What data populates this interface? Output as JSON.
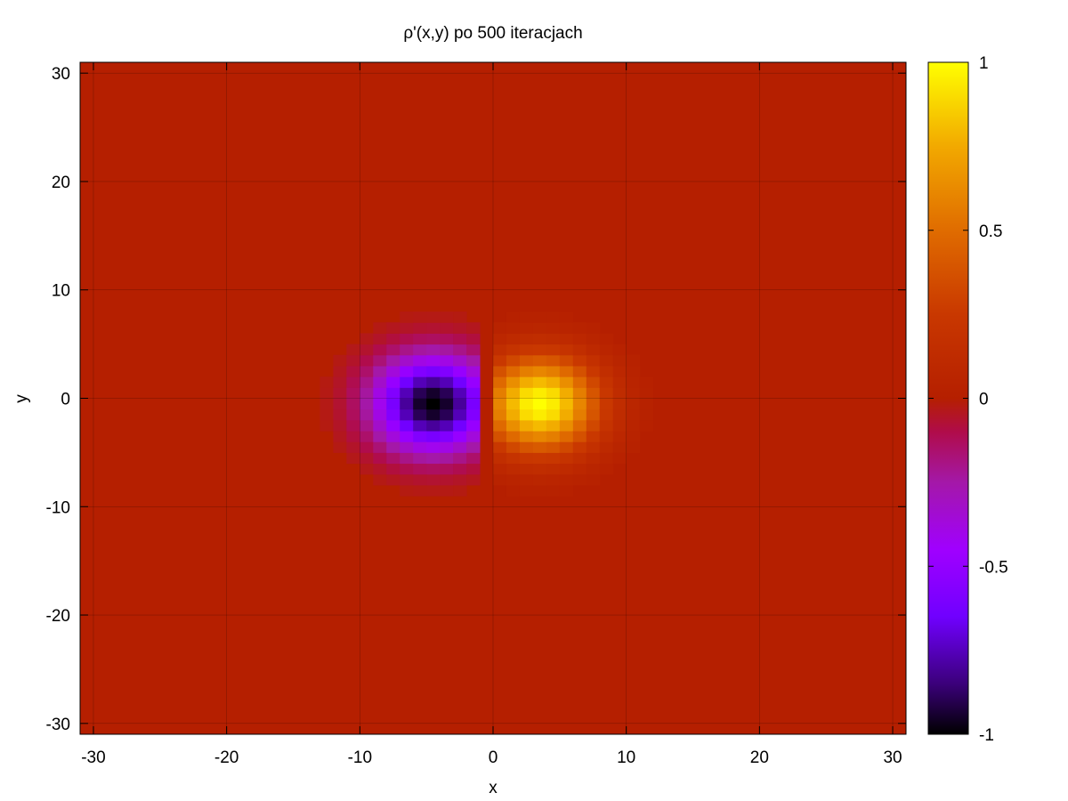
{
  "chart_data": {
    "type": "heatmap",
    "title": "ρ'(x,y) po 500 iteracjach",
    "xlabel": "x",
    "ylabel": "y",
    "xlim": [
      -31,
      31
    ],
    "ylim": [
      -31,
      31
    ],
    "xticks": [
      -30,
      -20,
      -10,
      0,
      10,
      20,
      30
    ],
    "yticks": [
      -30,
      -20,
      -10,
      0,
      10,
      20,
      30
    ],
    "xtick_labels": [
      "-30",
      "-20",
      "-10",
      "0",
      "10",
      "20",
      "30"
    ],
    "ytick_labels": [
      "-30",
      "-20",
      "-10",
      "0",
      "10",
      "20",
      "30"
    ],
    "grid": true,
    "cell_size": 1,
    "background_value": 0,
    "blobs": [
      {
        "name": "negative",
        "x": -4,
        "y": 0,
        "amplitude": -1,
        "sigma": 3,
        "clip_x": [
          -31,
          -0.5
        ]
      },
      {
        "name": "positive",
        "x": 4,
        "y": 0,
        "amplitude": 1,
        "sigma": 3,
        "clip_x": [
          0.5,
          31
        ]
      }
    ],
    "colorbar": {
      "min": -1,
      "max": 1,
      "ticks": [
        -1,
        -0.5,
        0,
        0.5,
        1
      ],
      "tick_labels": [
        "-1",
        "-0.5",
        "0",
        "0.5",
        "1"
      ],
      "palette": [
        {
          "v": -1.0,
          "color": "#000000"
        },
        {
          "v": -0.85,
          "color": "#3b007a"
        },
        {
          "v": -0.65,
          "color": "#7000ff"
        },
        {
          "v": -0.45,
          "color": "#a000ff"
        },
        {
          "v": -0.25,
          "color": "#a418a8"
        },
        {
          "v": -0.1,
          "color": "#b00c4a"
        },
        {
          "v": 0.0,
          "color": "#b51f00"
        },
        {
          "v": 0.25,
          "color": "#c93800"
        },
        {
          "v": 0.5,
          "color": "#e06c00"
        },
        {
          "v": 0.75,
          "color": "#f2a900"
        },
        {
          "v": 1.0,
          "color": "#ffff00"
        }
      ]
    }
  }
}
